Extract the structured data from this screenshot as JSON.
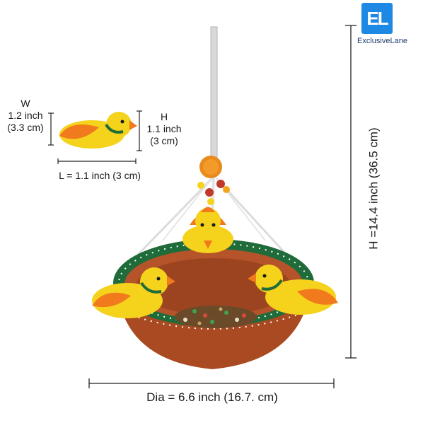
{
  "logo": {
    "mark": "EL",
    "name": "ExclusiveLane"
  },
  "small_bird": {
    "width_label": "W",
    "width_inch": "1.2 inch",
    "width_cm": "(3.3 cm)",
    "height_label": "H",
    "height_inch": "1.1 inch",
    "height_cm": "(3 cm)",
    "length_text": "L = 1.1 inch (3 cm)"
  },
  "feeder": {
    "diameter_text": "Dia = 6.6 inch (16.7. cm)",
    "height_text": "H =14.4 inch (36.5 cm)"
  },
  "colors": {
    "terracotta": "#b5532a",
    "rim_green": "#1f6b3a",
    "bird_yellow": "#f5d21c",
    "bird_orange": "#f07a1c",
    "logo_blue": "#1e88e5"
  }
}
